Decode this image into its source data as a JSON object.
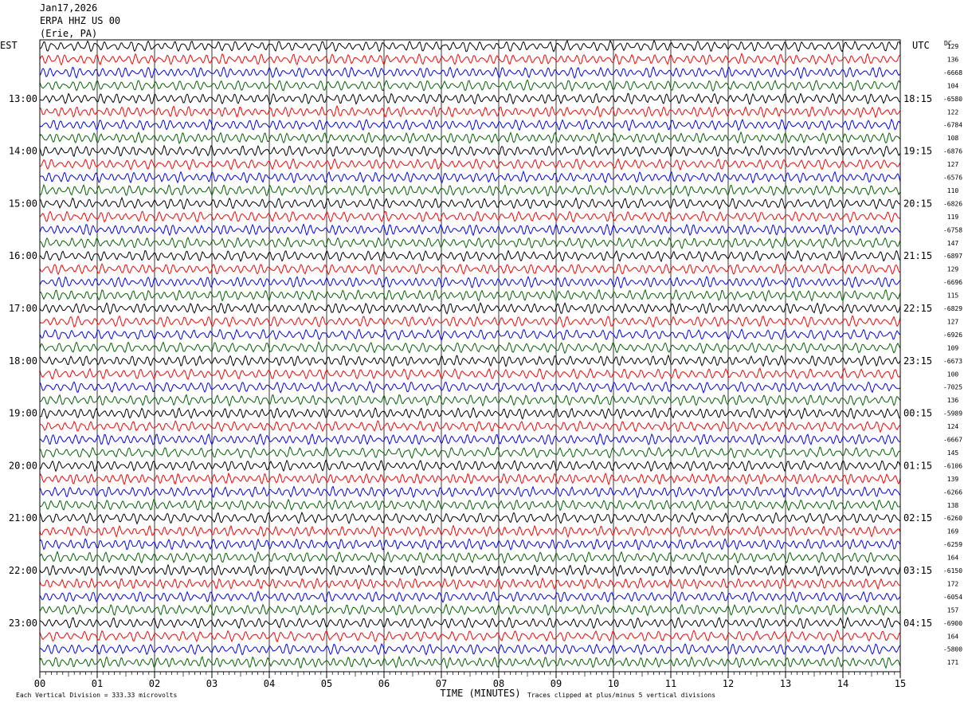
{
  "header": {
    "date": "Jan17,2026",
    "station": "ERPA HHZ US 00",
    "location": "(Erie, PA)"
  },
  "labels": {
    "left_zone": "EST",
    "right_zone": "UTC",
    "dc": "DC",
    "xlabel": "TIME (MINUTES)",
    "scale_note": "Each Vertical Division =  333.33 microvolts",
    "clip_note": "Traces clipped at plus/minus 5 vertical divisions"
  },
  "chart_data": {
    "type": "line",
    "title": "ERPA HHZ US 00",
    "xlabel": "TIME (MINUTES)",
    "xlim": [
      0,
      15
    ],
    "x_ticks": [
      "00",
      "01",
      "02",
      "03",
      "04",
      "05",
      "06",
      "07",
      "08",
      "09",
      "10",
      "11",
      "12",
      "13",
      "14",
      "15"
    ],
    "left_hour_labels": [
      "13:00",
      "14:00",
      "15:00",
      "16:00",
      "17:00",
      "18:00",
      "19:00",
      "20:00",
      "21:00",
      "22:00",
      "23:00"
    ],
    "right_hour_labels": [
      "18:15",
      "19:15",
      "20:15",
      "21:15",
      "22:15",
      "23:15",
      "00:15",
      "01:15",
      "02:15",
      "03:15",
      "04:15"
    ],
    "trace_colors": [
      "#000000",
      "#ff0000",
      "#0000ff",
      "#006400"
    ],
    "dc_offsets": [
      "129",
      "136",
      "-6668",
      "104",
      "-6580",
      "122",
      "-6784",
      "108",
      "-6876",
      "127",
      "-6576",
      "110",
      "-6826",
      "119",
      "-6758",
      "147",
      "-6897",
      "129",
      "-6696",
      "115",
      "-6829",
      "127",
      "-6926",
      "109",
      "-6673",
      "100",
      "-7025",
      "136",
      "-5989",
      "124",
      "-6667",
      "145",
      "-6106",
      "139",
      "-6266",
      "138",
      "-6260",
      "169",
      "-6259",
      "164",
      "-6150",
      "172",
      "-6054",
      "157",
      "-6900",
      "164",
      "-5800",
      "171"
    ],
    "trace_count": 48
  }
}
